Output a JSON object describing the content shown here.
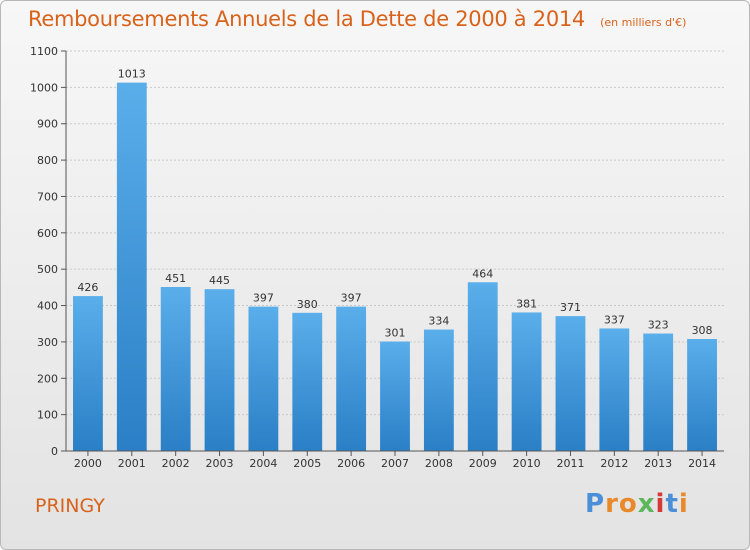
{
  "chart_data": {
    "type": "bar",
    "title": "Remboursements Annuels de la Dette de 2000 à 2014",
    "subtitle": "(en milliers d'€)",
    "categories": [
      "2000",
      "2001",
      "2002",
      "2003",
      "2004",
      "2005",
      "2006",
      "2007",
      "2008",
      "2009",
      "2010",
      "2011",
      "2012",
      "2013",
      "2014"
    ],
    "values": [
      426,
      1013,
      451,
      445,
      397,
      380,
      397,
      301,
      334,
      464,
      381,
      371,
      337,
      323,
      308
    ],
    "ylim": [
      0,
      1100
    ],
    "yticks": [
      0,
      100,
      200,
      300,
      400,
      500,
      600,
      700,
      800,
      900,
      1000,
      1100
    ],
    "grid": true,
    "bar_color_top": "#5aaeea",
    "bar_color_bottom": "#2a7fc6"
  },
  "commune": "PRINGY",
  "logo": {
    "text": "Proxiti",
    "colors": [
      "#4a8fd8",
      "#e8892a",
      "#e8892a",
      "#5cb85c",
      "#d43a3a",
      "#4a8fd8",
      "#e8892a"
    ]
  }
}
